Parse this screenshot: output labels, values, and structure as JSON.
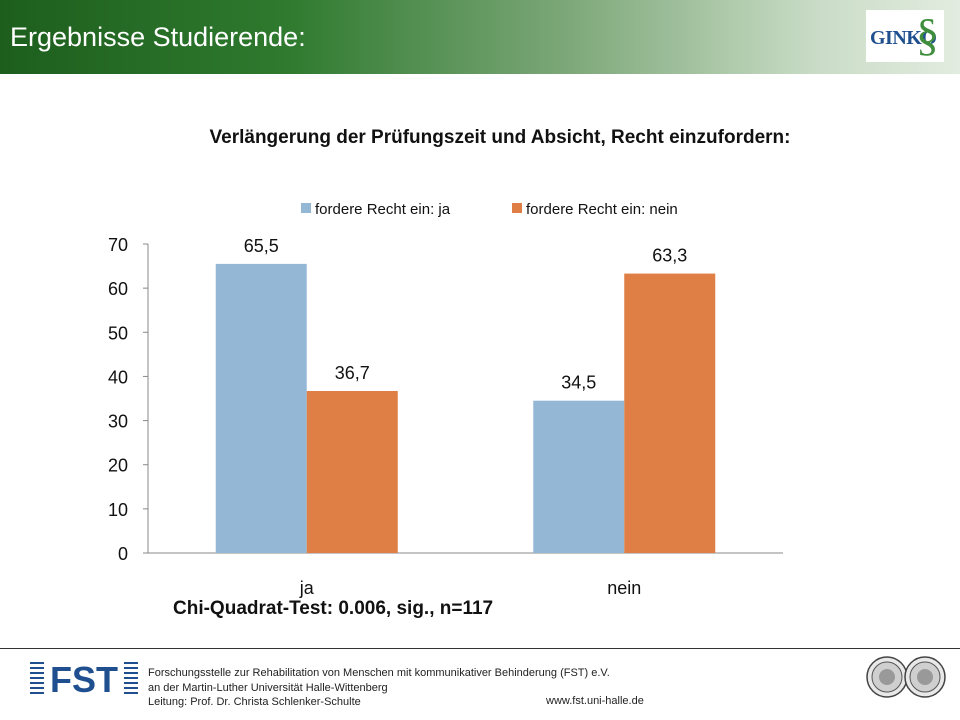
{
  "header": {
    "title": "Ergebnisse Studierende:",
    "logo_text": "GINKO",
    "logo_symbol": "§",
    "gradient_colors": [
      "#1d5e1d",
      "#e2ece0"
    ]
  },
  "chart_data": {
    "type": "bar",
    "title": "Verlängerung der Prüfungszeit und Absicht, Recht einzufordern:",
    "categories": [
      "ja",
      "nein"
    ],
    "series": [
      {
        "name": "fordere Recht ein: ja",
        "color": "#94b7d6",
        "values": [
          65.5,
          34.5
        ],
        "labels": [
          "65,5",
          "34,5"
        ]
      },
      {
        "name": "fordere Recht ein: nein",
        "color": "#e07f45",
        "values": [
          36.7,
          63.3
        ],
        "labels": [
          "36,7",
          "63,3"
        ]
      }
    ],
    "ylim": [
      0,
      70
    ],
    "yticks": [
      0,
      10,
      20,
      30,
      40,
      50,
      60,
      70
    ],
    "grid": false,
    "legend": "top",
    "annotation": "Chi-Quadrat-Test: 0.006, sig., n=117"
  },
  "footer": {
    "logo_text": "FST",
    "lines": [
      "Forschungsstelle zur Rehabilitation von Menschen mit kommunikativer Behinderung (FST)  e.V.",
      "an der Martin-Luther Universität Halle-Wittenberg",
      "Leitung: Prof. Dr. Christa Schlenker-Schulte"
    ],
    "url": "www.fst.uni-halle.de"
  }
}
